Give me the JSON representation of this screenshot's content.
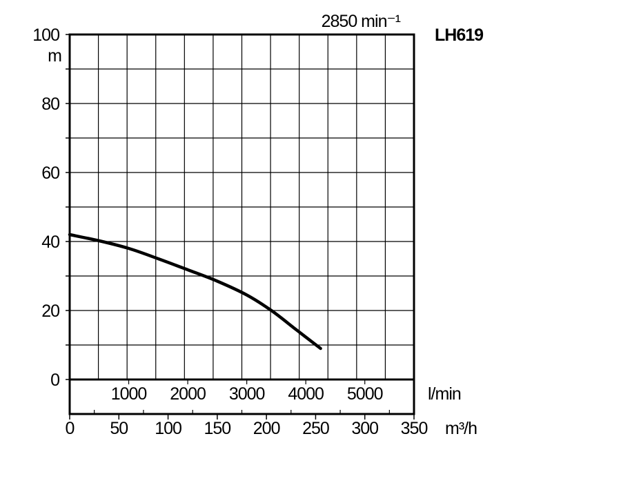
{
  "chart_data": {
    "type": "line",
    "title": "LH619",
    "subtitle": "2850 min⁻¹",
    "ylabel": "m",
    "ylim": [
      0,
      100
    ],
    "y_ticks": [
      "0",
      "20",
      "40",
      "60",
      "80",
      "100"
    ],
    "x_primary": {
      "unit": "m³/h",
      "lim": [
        0,
        350
      ],
      "ticks": [
        "0",
        "50",
        "100",
        "150",
        "200",
        "250",
        "300",
        "350"
      ]
    },
    "x_secondary": {
      "unit": "l/min",
      "ticks": [
        "1000",
        "2000",
        "3000",
        "4000",
        "5000"
      ]
    },
    "grid": true,
    "series": [
      {
        "x": [
          0,
          30,
          60,
          90,
          120,
          150,
          180,
          205,
          230,
          255
        ],
        "y": [
          42,
          40.2,
          38,
          35,
          31.8,
          28.5,
          24.5,
          20,
          14.5,
          9
        ]
      }
    ]
  }
}
